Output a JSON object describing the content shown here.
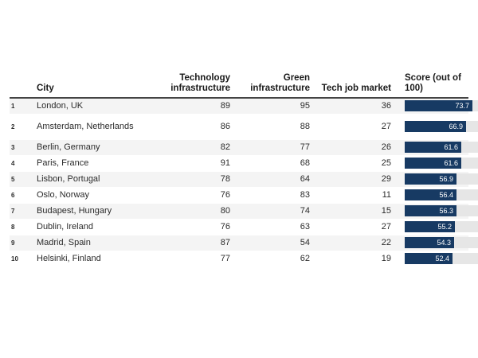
{
  "table": {
    "headers": {
      "rank": "",
      "city": "City",
      "technology_infrastructure": "Technology infrastructure",
      "green_infrastructure": "Green infrastructure",
      "tech_job_market": "Tech job market",
      "score": "Score (out of 100)"
    },
    "score_max": 100,
    "rows": [
      {
        "rank": "1",
        "city": "London, UK",
        "tech": "89",
        "green": "95",
        "jobs": "36",
        "score": "73.7"
      },
      {
        "rank": "2",
        "city": "Amsterdam, Netherlands",
        "tech": "86",
        "green": "88",
        "jobs": "27",
        "score": "66.9"
      },
      {
        "rank": "3",
        "city": "Berlin, Germany",
        "tech": "82",
        "green": "77",
        "jobs": "26",
        "score": "61.6"
      },
      {
        "rank": "4",
        "city": "Paris, France",
        "tech": "91",
        "green": "68",
        "jobs": "25",
        "score": "61.6"
      },
      {
        "rank": "5",
        "city": "Lisbon, Portugal",
        "tech": "78",
        "green": "64",
        "jobs": "29",
        "score": "56.9"
      },
      {
        "rank": "6",
        "city": "Oslo, Norway",
        "tech": "76",
        "green": "83",
        "jobs": "11",
        "score": "56.4"
      },
      {
        "rank": "7",
        "city": "Budapest, Hungary",
        "tech": "80",
        "green": "74",
        "jobs": "15",
        "score": "56.3"
      },
      {
        "rank": "8",
        "city": "Dublin, Ireland",
        "tech": "76",
        "green": "63",
        "jobs": "27",
        "score": "55.2"
      },
      {
        "rank": "9",
        "city": "Madrid, Spain",
        "tech": "87",
        "green": "54",
        "jobs": "22",
        "score": "54.3"
      },
      {
        "rank": "10",
        "city": "Helsinki, Finland",
        "tech": "77",
        "green": "62",
        "jobs": "19",
        "score": "52.4"
      }
    ]
  },
  "colors": {
    "bar": "#173a63",
    "track": "#e6e6e6",
    "stripe": "#f4f4f4"
  }
}
